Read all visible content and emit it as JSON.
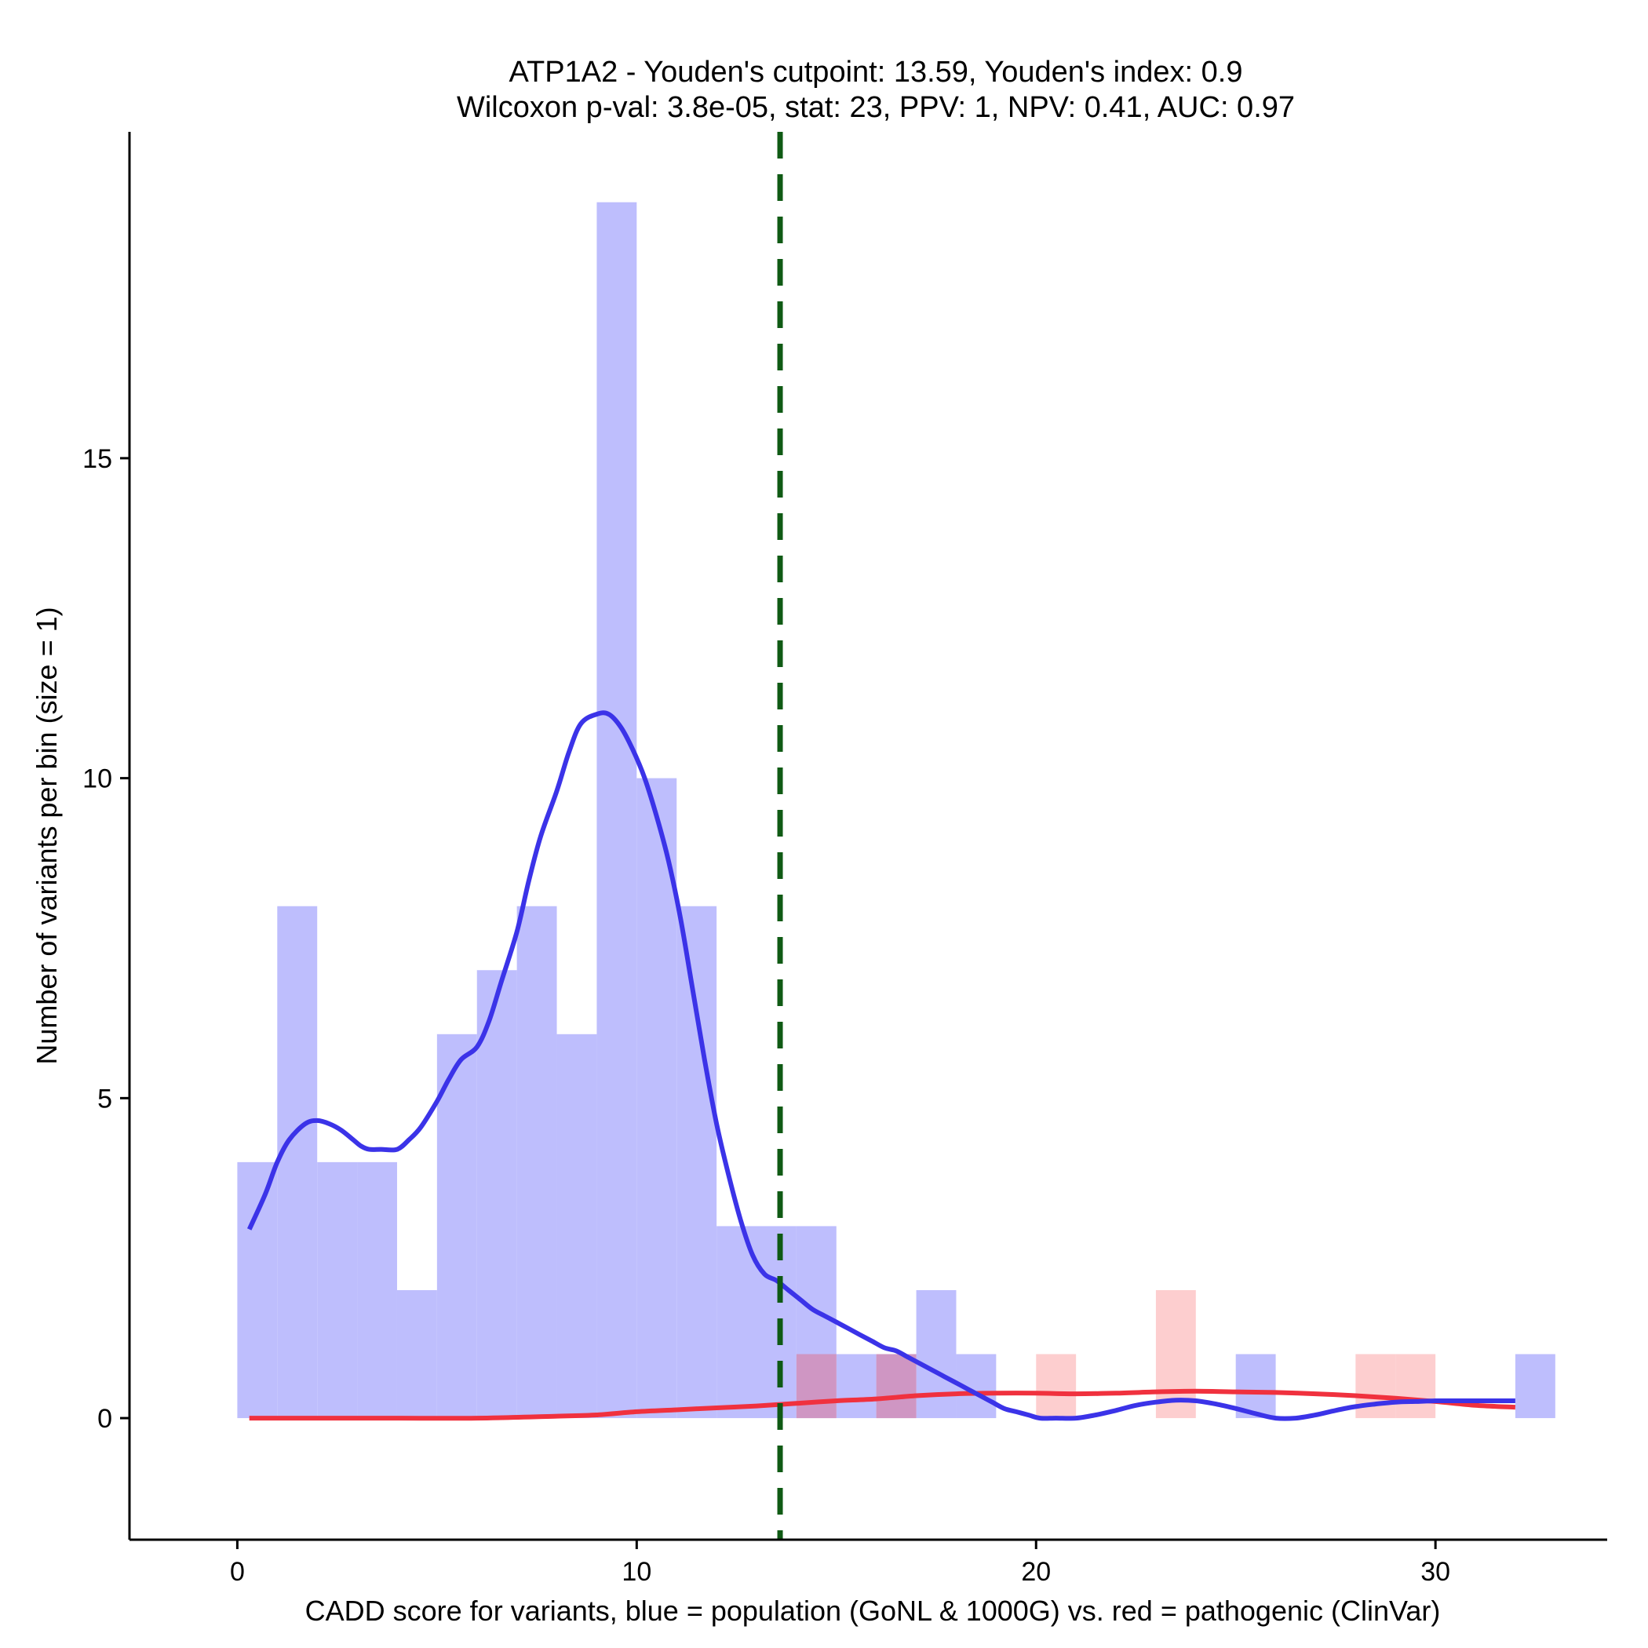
{
  "chart_data": {
    "type": "bar",
    "title_line1": "ATP1A2 - Youden's cutpoint: 13.59, Youden's index: 0.9",
    "title_line2": "Wilcoxon p-val: 3.8e-05, stat: 23, PPV: 1, NPV: 0.41, AUC: 0.97",
    "xlabel": "CADD score for variants, blue = population (GoNL & 1000G) vs. red = pathogenic (ClinVar)",
    "ylabel": "Number of variants per bin (size = 1)",
    "xlim": [
      -2.7,
      34.3
    ],
    "ylim": [
      -1.9,
      20.1
    ],
    "x_ticks": [
      0,
      10,
      20,
      30
    ],
    "x_tick_labels": [
      "0",
      "10",
      "20",
      "30"
    ],
    "y_ticks": [
      0,
      5,
      10,
      15
    ],
    "y_tick_labels": [
      "0",
      "5",
      "10",
      "15"
    ],
    "bin_size": 1,
    "cutpoint": 13.59,
    "colors": {
      "population_bar": "#bebefd",
      "pathogenic_bar": "#fcbdbf",
      "overlap_bar": "#cf96c3",
      "population_line": "#3b33e8",
      "pathogenic_line": "#f0313e",
      "cutpoint_line": "#0f5a14",
      "axis": "#000000"
    },
    "series": [
      {
        "name": "population (GoNL & 1000G)",
        "kind": "histogram",
        "bins": [
          {
            "x0": 0,
            "x1": 1,
            "count": 4
          },
          {
            "x0": 1,
            "x1": 2,
            "count": 8
          },
          {
            "x0": 2,
            "x1": 3,
            "count": 4
          },
          {
            "x0": 3,
            "x1": 4,
            "count": 4
          },
          {
            "x0": 4,
            "x1": 5,
            "count": 2
          },
          {
            "x0": 5,
            "x1": 6,
            "count": 6
          },
          {
            "x0": 6,
            "x1": 7,
            "count": 7
          },
          {
            "x0": 7,
            "x1": 8,
            "count": 8
          },
          {
            "x0": 8,
            "x1": 9,
            "count": 6
          },
          {
            "x0": 9,
            "x1": 10,
            "count": 19
          },
          {
            "x0": 10,
            "x1": 11,
            "count": 10
          },
          {
            "x0": 11,
            "x1": 12,
            "count": 8
          },
          {
            "x0": 12,
            "x1": 13,
            "count": 3
          },
          {
            "x0": 13,
            "x1": 14,
            "count": 3
          },
          {
            "x0": 14,
            "x1": 15,
            "count": 3
          },
          {
            "x0": 15,
            "x1": 16,
            "count": 1
          },
          {
            "x0": 16,
            "x1": 17,
            "count": 1
          },
          {
            "x0": 17,
            "x1": 18,
            "count": 2
          },
          {
            "x0": 18,
            "x1": 19,
            "count": 1
          },
          {
            "x0": 25,
            "x1": 26,
            "count": 1
          },
          {
            "x0": 32,
            "x1": 33,
            "count": 1
          }
        ]
      },
      {
        "name": "pathogenic (ClinVar)",
        "kind": "histogram",
        "bins": [
          {
            "x0": 14,
            "x1": 15,
            "count": 1
          },
          {
            "x0": 16,
            "x1": 17,
            "count": 1
          },
          {
            "x0": 20,
            "x1": 21,
            "count": 1
          },
          {
            "x0": 23,
            "x1": 24,
            "count": 2
          },
          {
            "x0": 28,
            "x1": 29,
            "count": 1
          },
          {
            "x0": 29,
            "x1": 30,
            "count": 1
          }
        ]
      },
      {
        "name": "population density",
        "kind": "line",
        "x": [
          0.3,
          0.7,
          1.0,
          1.3,
          1.7,
          2.0,
          2.3,
          2.6,
          2.9,
          3.1,
          3.3,
          3.6,
          4.0,
          4.3,
          4.6,
          5.0,
          5.3,
          5.6,
          6.0,
          6.3,
          6.6,
          7.0,
          7.3,
          7.6,
          8.0,
          8.3,
          8.6,
          9.0,
          9.3,
          9.6,
          9.9,
          10.2,
          10.5,
          10.8,
          11.1,
          11.4,
          11.7,
          12.0,
          12.3,
          12.6,
          12.9,
          13.2,
          13.5,
          13.8,
          14.1,
          14.4,
          14.7,
          15.0,
          15.3,
          15.6,
          15.9,
          16.2,
          16.5,
          16.8,
          17.1,
          17.4,
          17.7,
          18.0,
          18.3,
          18.6,
          18.9,
          19.2,
          19.5,
          19.8,
          20.1,
          20.5,
          21.0,
          21.5,
          22.0,
          22.5,
          23.0,
          23.5,
          24.0,
          24.5,
          25.0,
          25.5,
          26.0,
          26.5,
          27.0,
          27.5,
          28.0,
          28.5,
          29.0,
          29.5,
          30.0,
          30.5,
          31.0,
          31.5,
          32.0
        ],
        "y": [
          2.95,
          3.5,
          4.0,
          4.35,
          4.6,
          4.65,
          4.6,
          4.5,
          4.35,
          4.25,
          4.2,
          4.2,
          4.2,
          4.35,
          4.55,
          4.95,
          5.3,
          5.6,
          5.8,
          6.2,
          6.8,
          7.6,
          8.4,
          9.1,
          9.8,
          10.4,
          10.85,
          11.0,
          11.0,
          10.8,
          10.45,
          10.0,
          9.4,
          8.7,
          7.8,
          6.7,
          5.6,
          4.6,
          3.8,
          3.1,
          2.55,
          2.25,
          2.15,
          2.0,
          1.85,
          1.7,
          1.6,
          1.5,
          1.4,
          1.3,
          1.2,
          1.1,
          1.05,
          0.95,
          0.85,
          0.75,
          0.65,
          0.55,
          0.45,
          0.35,
          0.25,
          0.15,
          0.1,
          0.05,
          0.0,
          0.0,
          0.0,
          0.05,
          0.12,
          0.2,
          0.25,
          0.28,
          0.27,
          0.22,
          0.15,
          0.07,
          0.0,
          0.0,
          0.05,
          0.12,
          0.18,
          0.22,
          0.25,
          0.26,
          0.27,
          0.27,
          0.27,
          0.27,
          0.27
        ],
        "x_override_note": ""
      },
      {
        "name": "pathogenic density",
        "kind": "line",
        "x": [
          0.3,
          2.0,
          4.0,
          6.0,
          8.0,
          9.0,
          10.0,
          11.0,
          12.0,
          13.0,
          14.0,
          15.0,
          16.0,
          17.0,
          18.0,
          19.0,
          20.0,
          21.0,
          22.0,
          23.0,
          24.0,
          25.0,
          26.0,
          27.0,
          28.0,
          29.0,
          30.0,
          31.0,
          32.0
        ],
        "y": [
          0.0,
          0.0,
          0.0,
          0.0,
          0.03,
          0.05,
          0.1,
          0.13,
          0.16,
          0.19,
          0.23,
          0.27,
          0.3,
          0.35,
          0.38,
          0.39,
          0.39,
          0.38,
          0.39,
          0.41,
          0.42,
          0.41,
          0.4,
          0.38,
          0.35,
          0.31,
          0.26,
          0.2,
          0.17
        ]
      }
    ]
  }
}
